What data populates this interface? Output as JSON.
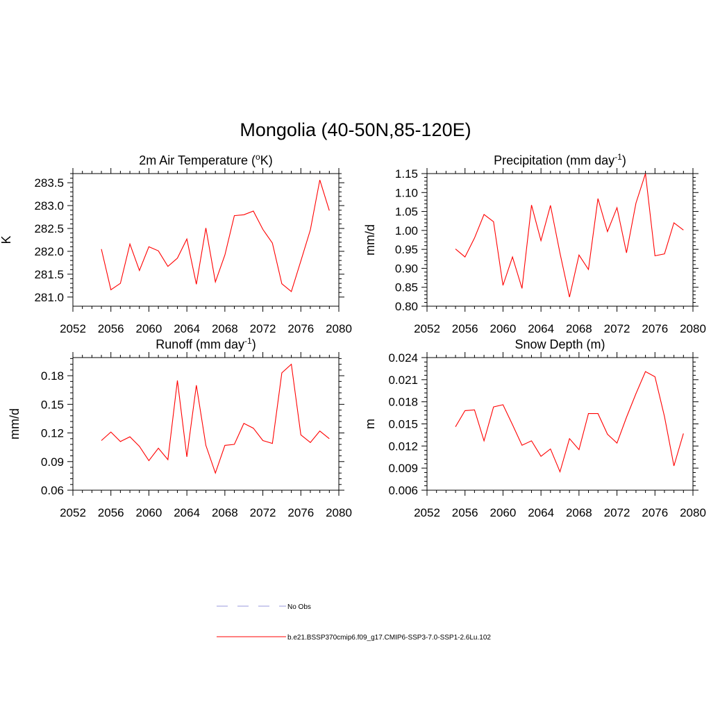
{
  "title": "Mongolia (40-50N,85-120E)",
  "legend": [
    {
      "label": "No Obs",
      "color": "#9999dd",
      "dash": true
    },
    {
      "label": "b.e21.BSSP370cmip6.f09_g17.CMIP6-SSP3-7.0-SSP1-2.6Lu.102",
      "color": "#ff0000",
      "dash": false
    }
  ],
  "chart_data": [
    {
      "type": "line",
      "title": "2m Air Temperature (",
      "title_sup": "o",
      "title_tail": "K)",
      "ylabel": "K",
      "xlim": [
        2052,
        2080
      ],
      "xticks": [
        2052,
        2056,
        2060,
        2064,
        2068,
        2072,
        2076,
        2080
      ],
      "ylim": [
        280.8,
        283.7
      ],
      "yticks": [
        281.0,
        281.5,
        282.0,
        282.5,
        283.0,
        283.5
      ],
      "ytick_decimals": 1,
      "color": "#ff0000",
      "x": [
        2055,
        2056,
        2057,
        2058,
        2059,
        2060,
        2061,
        2062,
        2063,
        2064,
        2065,
        2066,
        2067,
        2068,
        2069,
        2070,
        2071,
        2072,
        2073,
        2074,
        2075,
        2076,
        2077,
        2078,
        2079
      ],
      "y": [
        282.05,
        281.16,
        281.3,
        282.16,
        281.58,
        282.1,
        282.01,
        281.67,
        281.85,
        282.27,
        281.28,
        282.51,
        281.33,
        281.92,
        282.78,
        282.8,
        282.88,
        282.48,
        282.18,
        281.29,
        281.12,
        281.79,
        282.47,
        283.56,
        282.89
      ]
    },
    {
      "type": "line",
      "title": "Precipitation (mm day",
      "title_sup": "-1",
      "title_tail": ")",
      "ylabel": "mm/d",
      "xlim": [
        2052,
        2080
      ],
      "xticks": [
        2052,
        2056,
        2060,
        2064,
        2068,
        2072,
        2076,
        2080
      ],
      "ylim": [
        0.8,
        1.15
      ],
      "yticks": [
        0.8,
        0.85,
        0.9,
        0.95,
        1.0,
        1.05,
        1.1,
        1.15
      ],
      "ytick_decimals": 2,
      "color": "#ff0000",
      "x": [
        2055,
        2056,
        2057,
        2058,
        2059,
        2060,
        2061,
        2062,
        2063,
        2064,
        2065,
        2066,
        2067,
        2068,
        2069,
        2070,
        2071,
        2072,
        2073,
        2074,
        2075,
        2076,
        2077,
        2078,
        2079
      ],
      "y": [
        0.951,
        0.93,
        0.98,
        1.042,
        1.023,
        0.855,
        0.93,
        0.847,
        1.067,
        0.973,
        1.066,
        0.94,
        0.824,
        0.935,
        0.897,
        1.084,
        0.997,
        1.06,
        0.941,
        1.072,
        1.15,
        0.933,
        0.938,
        1.02,
        1.001
      ]
    },
    {
      "type": "line",
      "title": "Runoff (mm day",
      "title_sup": "-1",
      "title_tail": ")",
      "ylabel": "mm/d",
      "xlim": [
        2052,
        2080
      ],
      "xticks": [
        2052,
        2056,
        2060,
        2064,
        2068,
        2072,
        2076,
        2080
      ],
      "ylim": [
        0.06,
        0.199
      ],
      "yticks": [
        0.06,
        0.09,
        0.12,
        0.15,
        0.18
      ],
      "ytick_decimals": 2,
      "color": "#ff0000",
      "x": [
        2055,
        2056,
        2057,
        2058,
        2059,
        2060,
        2061,
        2062,
        2063,
        2064,
        2065,
        2066,
        2067,
        2068,
        2069,
        2070,
        2071,
        2072,
        2073,
        2074,
        2075,
        2076,
        2077,
        2078,
        2079
      ],
      "y": [
        0.112,
        0.121,
        0.111,
        0.116,
        0.106,
        0.091,
        0.104,
        0.092,
        0.175,
        0.095,
        0.17,
        0.107,
        0.078,
        0.107,
        0.108,
        0.13,
        0.125,
        0.112,
        0.109,
        0.183,
        0.192,
        0.118,
        0.11,
        0.122,
        0.114
      ]
    },
    {
      "type": "line",
      "title": "Snow Depth (m)",
      "title_sup": "",
      "title_tail": "",
      "ylabel": "m",
      "xlim": [
        2052,
        2080
      ],
      "xticks": [
        2052,
        2056,
        2060,
        2064,
        2068,
        2072,
        2076,
        2080
      ],
      "ylim": [
        0.006,
        0.024
      ],
      "yticks": [
        0.006,
        0.009,
        0.012,
        0.015,
        0.018,
        0.021,
        0.024
      ],
      "ytick_decimals": 3,
      "color": "#ff0000",
      "x": [
        2055,
        2056,
        2057,
        2058,
        2059,
        2060,
        2061,
        2062,
        2063,
        2064,
        2065,
        2066,
        2067,
        2068,
        2069,
        2070,
        2071,
        2072,
        2073,
        2074,
        2075,
        2076,
        2077,
        2078,
        2079
      ],
      "y": [
        0.0146,
        0.0168,
        0.0169,
        0.0127,
        0.0173,
        0.0176,
        0.0149,
        0.0121,
        0.0127,
        0.0106,
        0.0116,
        0.0085,
        0.013,
        0.0115,
        0.0164,
        0.0164,
        0.0136,
        0.0124,
        0.0159,
        0.0191,
        0.0221,
        0.0214,
        0.016,
        0.0093,
        0.0137
      ]
    }
  ]
}
